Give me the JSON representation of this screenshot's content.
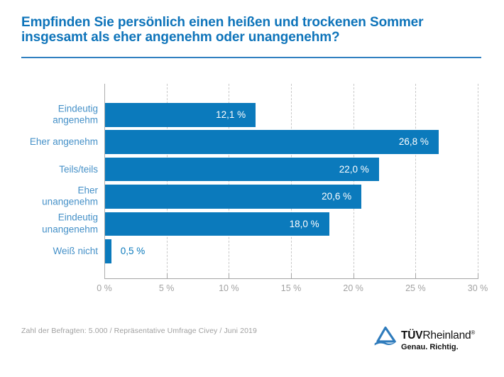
{
  "title": {
    "line1": "Empfinden Sie persönlich einen heißen und trockenen Sommer",
    "line2": "insgesamt als eher angenehm oder unangenehm?"
  },
  "chart_data": {
    "type": "bar",
    "orientation": "horizontal",
    "title": "Empfinden Sie persönlich einen heißen und trockenen Sommer insgesamt als eher angenehm oder unangenehm?",
    "categories": [
      "Eindeutig angenehm",
      "Eher angenehm",
      "Teils/teils",
      "Eher unangenehm",
      "Eindeutig unangenehm",
      "Weiß nicht"
    ],
    "category_lines": [
      [
        "Eindeutig",
        "angenehm"
      ],
      [
        "Eher angenehm"
      ],
      [
        "Teils/teils"
      ],
      [
        "Eher",
        "unangenehm"
      ],
      [
        "Eindeutig",
        "unangenehm"
      ],
      [
        "Weiß nicht"
      ]
    ],
    "values": [
      12.1,
      26.8,
      22.0,
      20.6,
      18.0,
      0.5
    ],
    "value_labels": [
      "12,1 %",
      "26,8 %",
      "22,0 %",
      "20,6 %",
      "18,0 %",
      "0,5 %"
    ],
    "xlim": [
      0,
      30
    ],
    "x_ticks": [
      0,
      5,
      10,
      15,
      20,
      25,
      30
    ],
    "x_tick_labels": [
      "0 %",
      "5 %",
      "10 %",
      "15 %",
      "20 %",
      "25 %",
      "30 %"
    ],
    "grid": true,
    "legend": false,
    "bar_color": "#0b7abc"
  },
  "footer": {
    "source_note": "Zahl der Befragten: 5.000 / Repräsentative Umfrage Civey / Juni 2019"
  },
  "logo": {
    "brand_bold": "TÜV",
    "brand_rest": "Rheinland",
    "registered": "®",
    "tagline": "Genau. Richtig.",
    "brand_blue": "#2e7bbc"
  },
  "colors": {
    "title_blue": "#0e74ba",
    "bar_blue": "#0b7abc",
    "category_label_blue": "#4691c8",
    "axis_gray": "#a5a5a5",
    "grid_gray": "#c9c9c9",
    "tick_text_gray": "#a2a2a2",
    "footer_gray": "#a0a0a0"
  }
}
